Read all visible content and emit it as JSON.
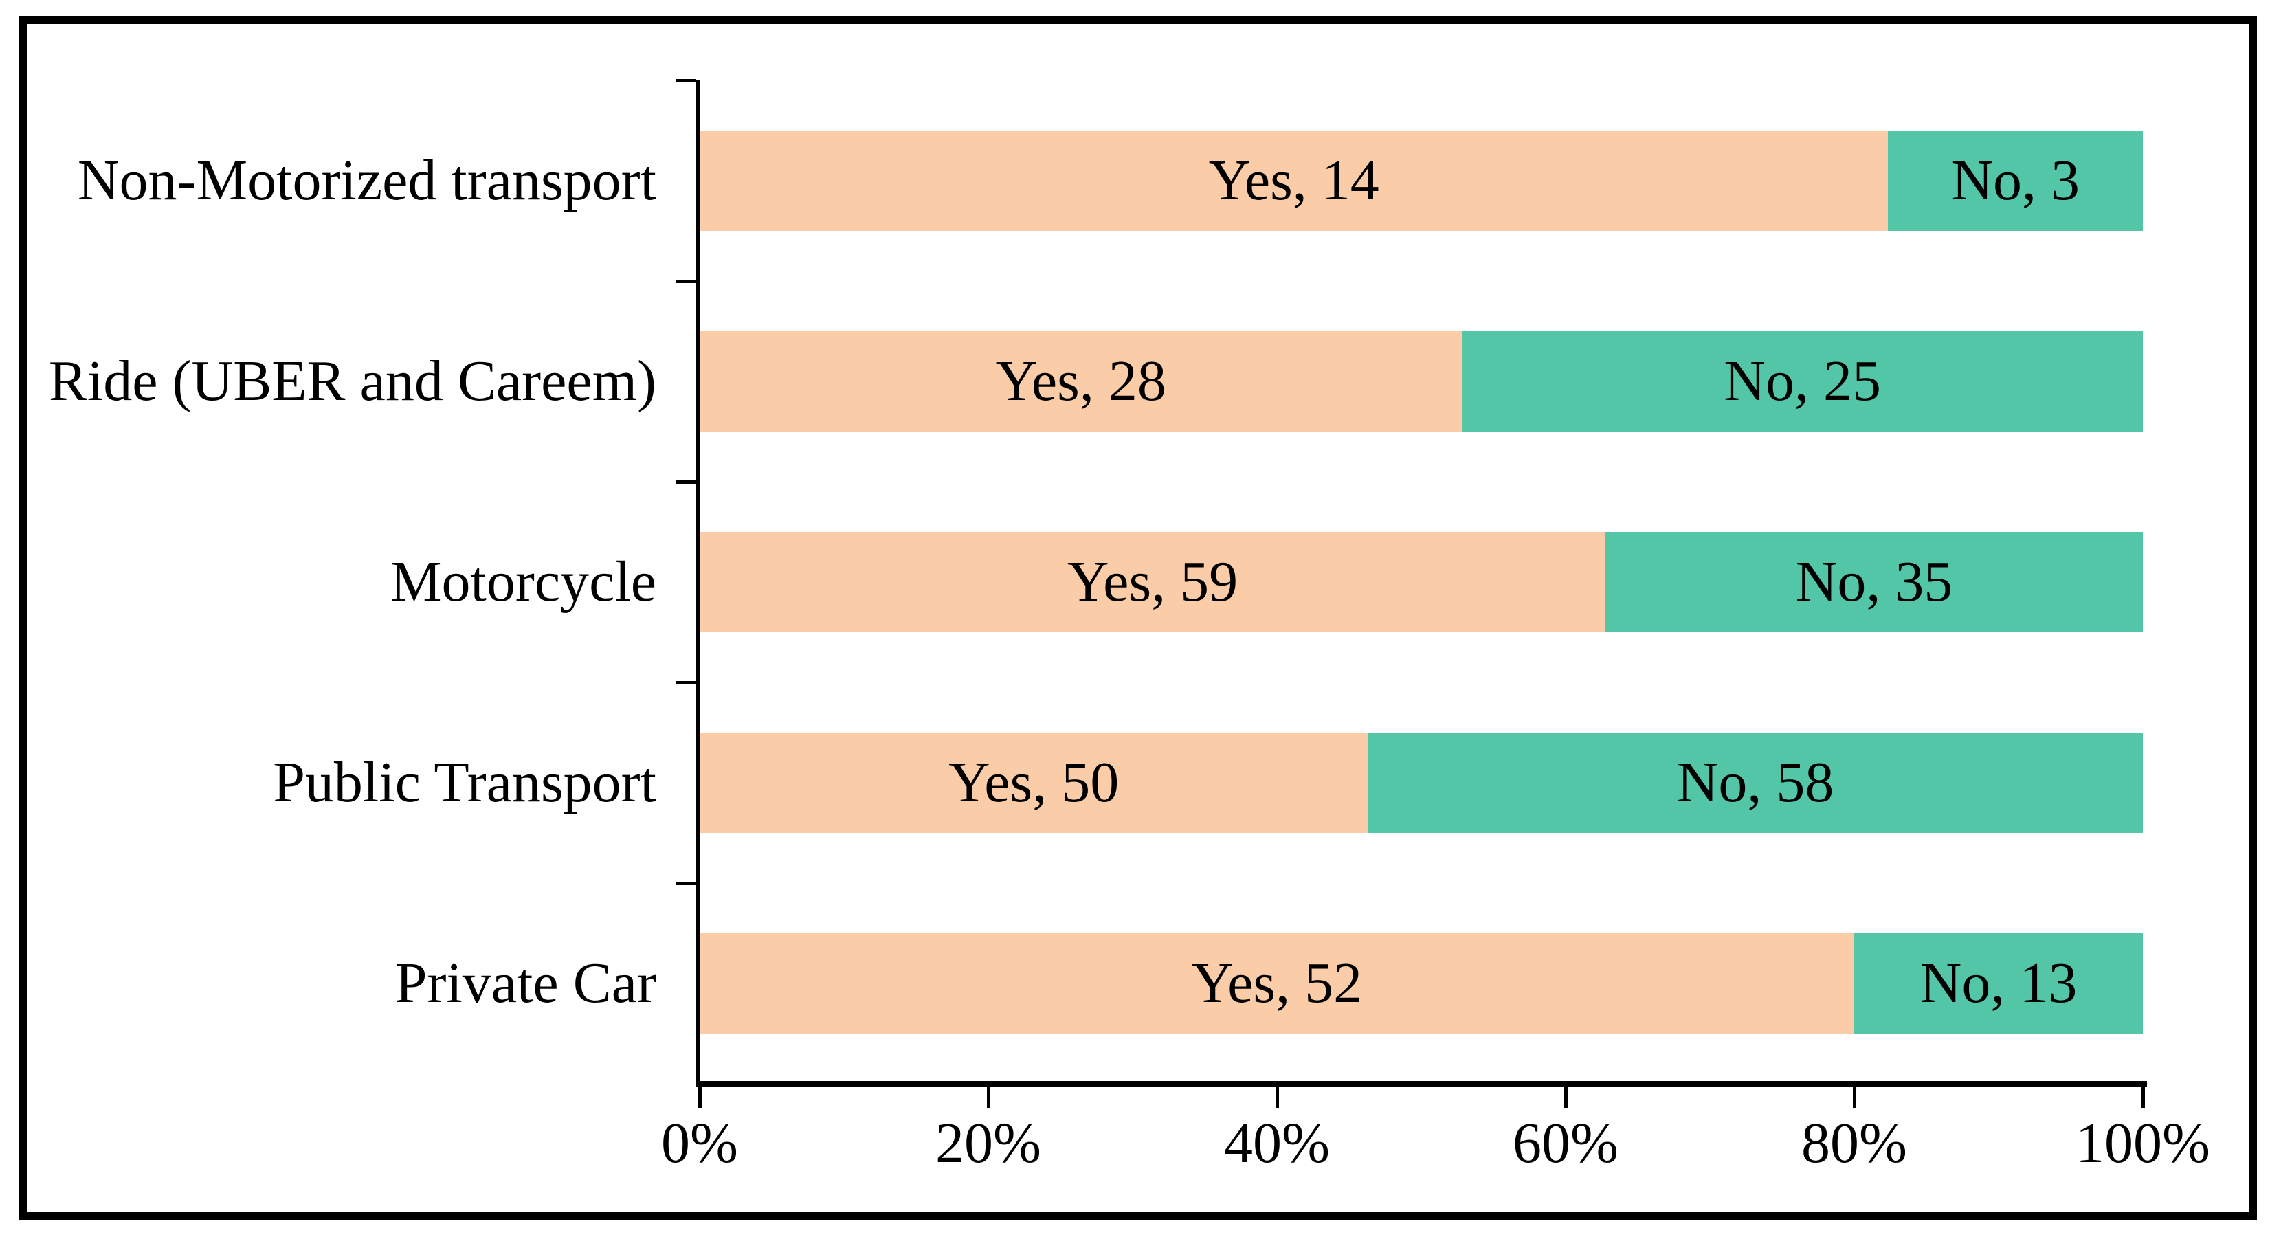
{
  "chart_data": {
    "type": "bar",
    "subtype": "horizontal-100pct-stacked",
    "categories": [
      "Non-Motorized transport",
      "Ride (UBER and Careem)",
      "Motorcycle",
      "Public Transport",
      "Private Car"
    ],
    "series": [
      {
        "name": "Yes",
        "color": "#FACDA8",
        "values": [
          14,
          28,
          59,
          50,
          52
        ]
      },
      {
        "name": "No",
        "color": "#52C6A6",
        "values": [
          3,
          25,
          35,
          58,
          13
        ]
      }
    ],
    "bar_labels": [
      [
        "Yes, 14",
        "No, 3"
      ],
      [
        "Yes, 28",
        "No, 25"
      ],
      [
        "Yes, 59",
        "No, 35"
      ],
      [
        "Yes, 50",
        "No, 58"
      ],
      [
        "Yes, 52",
        "No, 13"
      ]
    ],
    "x_axis": {
      "min": 0,
      "max": 100,
      "tick_labels": [
        "0%",
        "20%",
        "40%",
        "60%",
        "80%",
        "100%"
      ]
    },
    "legend": "none",
    "grid": "none"
  },
  "style": {
    "background": "#FFFFFF",
    "text_color": "#000000",
    "axis_color": "#000000",
    "frame_color": "#000000"
  }
}
